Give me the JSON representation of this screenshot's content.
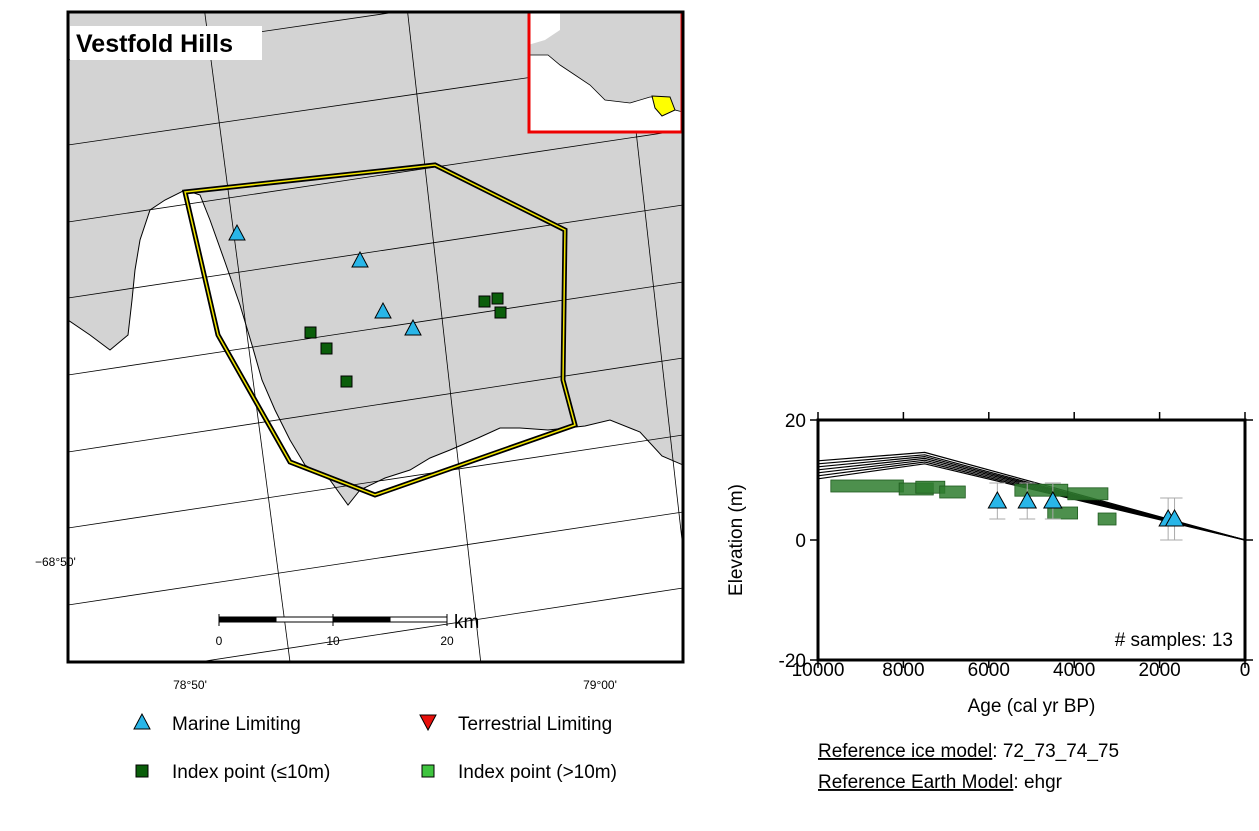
{
  "map": {
    "title": "Vestfold Hills",
    "lat_labels": [
      "−68°50'"
    ],
    "lon_labels": [
      "78°50'",
      "79°00'"
    ],
    "scale_bar": {
      "ticks": [
        0,
        10,
        20
      ],
      "unit": "km"
    },
    "legend": [
      {
        "label": "Marine Limiting",
        "marker": "triangle-up",
        "color": "#29b6e8"
      },
      {
        "label": "Terrestrial Limiting",
        "marker": "triangle-down",
        "color": "#e8100c"
      },
      {
        "label": "Index point (≤10m)",
        "marker": "square",
        "color": "#0a5e0a"
      },
      {
        "label": "Index point (>10m)",
        "marker": "square",
        "color": "#3fc43f"
      }
    ]
  },
  "chart_data": {
    "type": "scatter",
    "xlabel": "Age (cal yr BP)",
    "ylabel": "Elevation (m)",
    "xlim": [
      10000,
      0
    ],
    "ylim": [
      -20,
      20
    ],
    "xticks": [
      10000,
      8000,
      6000,
      4000,
      2000,
      0
    ],
    "yticks": [
      -20,
      0,
      20
    ],
    "annotation": "# samples: 13",
    "series": [
      {
        "kind": "line",
        "color": "#000000",
        "x": [
          10000,
          7500,
          0
        ],
        "values": [
          13.2,
          14.6,
          0
        ]
      },
      {
        "kind": "line",
        "color": "#000000",
        "x": [
          10000,
          7500,
          0
        ],
        "values": [
          12.7,
          14.2,
          0
        ]
      },
      {
        "kind": "line",
        "color": "#000000",
        "x": [
          10000,
          7500,
          0
        ],
        "values": [
          12.2,
          13.9,
          0
        ]
      },
      {
        "kind": "line",
        "color": "#000000",
        "x": [
          10000,
          7500,
          0
        ],
        "values": [
          11.7,
          13.6,
          0
        ]
      },
      {
        "kind": "line",
        "color": "#000000",
        "x": [
          10000,
          7500,
          0
        ],
        "values": [
          11.2,
          13.3,
          0
        ]
      },
      {
        "kind": "line",
        "color": "#000000",
        "x": [
          10000,
          7500,
          0
        ],
        "values": [
          10.7,
          13.0,
          0
        ]
      },
      {
        "kind": "line",
        "color": "#000000",
        "x": [
          10000,
          7500,
          0
        ],
        "values": [
          10.2,
          12.7,
          0
        ]
      },
      {
        "kind": "box",
        "color": "#2e7d2e",
        "x": [
          8850,
          7700,
          7370,
          6850,
          4770,
          3680,
          4270,
          3230
        ],
        "xerr": [
          850,
          400,
          340,
          300,
          620,
          470,
          350,
          210
        ],
        "values": [
          9,
          8.5,
          8.8,
          8,
          8.3,
          7.7,
          4.5,
          3.5
        ]
      },
      {
        "kind": "triangle",
        "color": "#29b6e8",
        "x": [
          5800,
          5100,
          4500,
          1800,
          1650
        ],
        "values": [
          6.5,
          6.5,
          6.5,
          3.5,
          3.5
        ],
        "yerr": [
          3,
          3,
          3,
          3.5,
          3.5
        ]
      }
    ]
  },
  "references": [
    {
      "label": "Reference ice model",
      "value": ": 72_73_74_75"
    },
    {
      "label": "Reference Earth Model",
      "value": ": ehgr"
    }
  ]
}
